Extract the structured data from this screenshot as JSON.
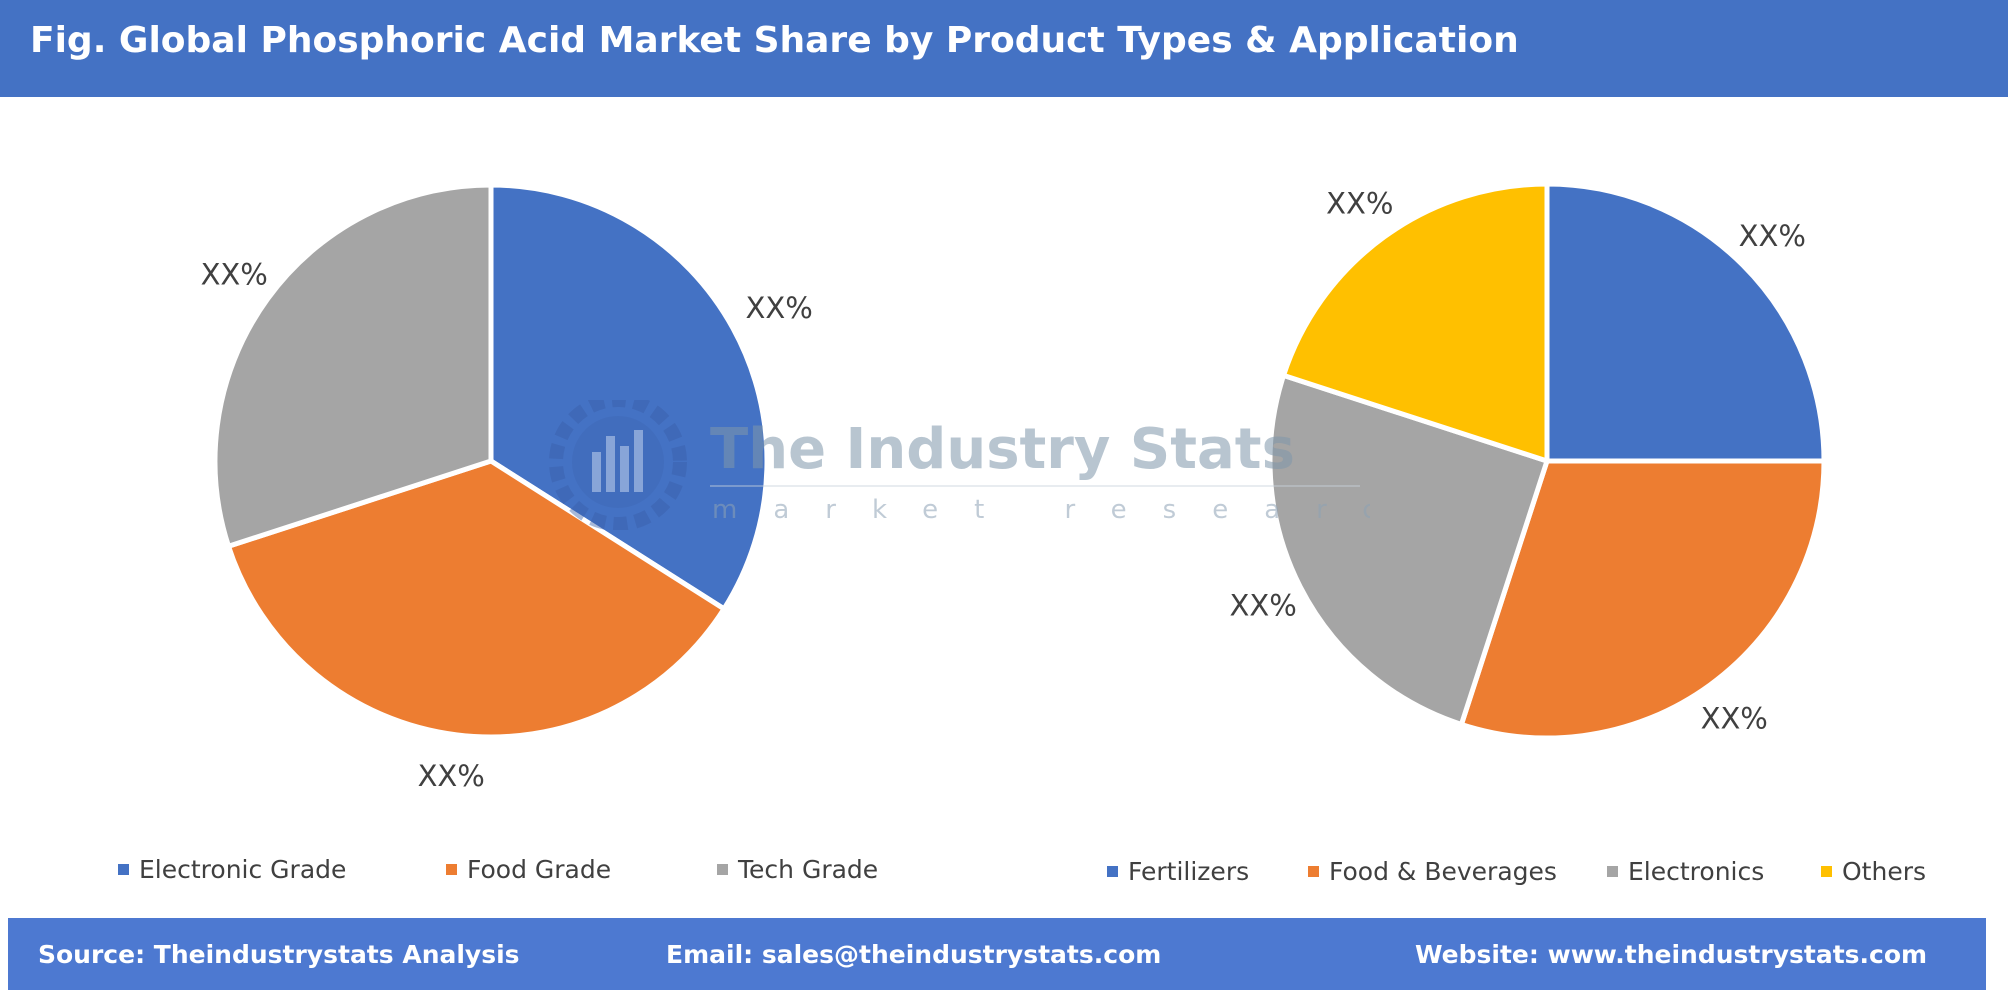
{
  "header": {
    "title": "Fig. Global Phosphoric Acid Market Share by Product Types & Application"
  },
  "colors": {
    "blue": "#4472c4",
    "orange": "#ed7d31",
    "gray": "#a5a5a5",
    "yellow": "#ffc000",
    "header_bg": "#4472c4",
    "footer_bg": "#4d79d1"
  },
  "chart_data": [
    {
      "type": "pie",
      "title": "",
      "legend_position": "bottom",
      "slices": [
        {
          "label": "Electronic Grade",
          "value": 34,
          "data_label": "XX%",
          "color": "#4472c4"
        },
        {
          "label": "Food Grade",
          "value": 36,
          "data_label": "XX%",
          "color": "#ed7d31"
        },
        {
          "label": "Tech Grade",
          "value": 30,
          "data_label": "XX%",
          "color": "#a5a5a5"
        }
      ]
    },
    {
      "type": "pie",
      "title": "",
      "legend_position": "bottom",
      "slices": [
        {
          "label": "Fertilizers",
          "value": 25,
          "data_label": "XX%",
          "color": "#4472c4"
        },
        {
          "label": "Food & Beverages",
          "value": 30,
          "data_label": "XX%",
          "color": "#ed7d31"
        },
        {
          "label": "Electronics",
          "value": 25,
          "data_label": "XX%",
          "color": "#a5a5a5"
        },
        {
          "label": "Others",
          "value": 20,
          "data_label": "XX%",
          "color": "#ffc000"
        }
      ]
    }
  ],
  "watermark": {
    "name": "The Industry Stats",
    "tagline": "market research",
    "icon": "gear-chart-icon"
  },
  "footer": {
    "source": "Source: Theindustrystats Analysis",
    "email": "Email: sales@theindustrystats.com",
    "website": "Website: www.theindustrystats.com"
  }
}
